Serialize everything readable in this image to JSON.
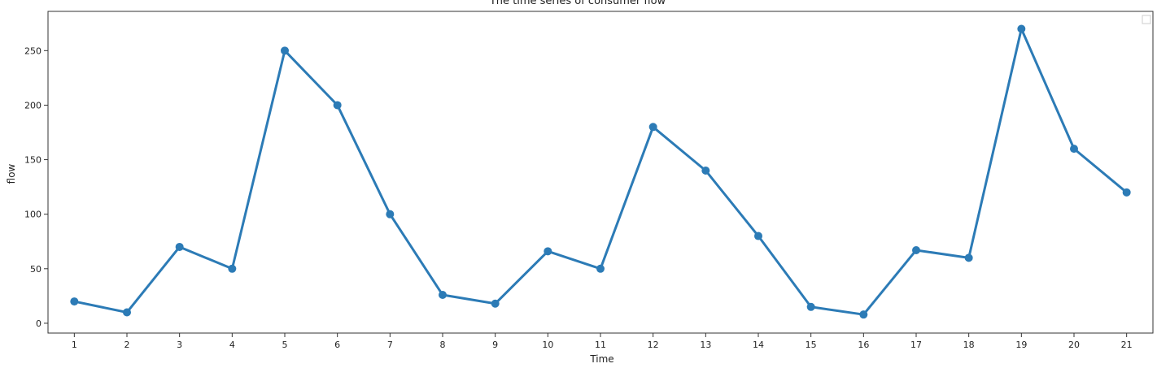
{
  "chart_data": {
    "type": "line",
    "title": "The time series of consumer flow",
    "xlabel": "Time",
    "ylabel": "flow",
    "x": [
      1,
      2,
      3,
      4,
      5,
      6,
      7,
      8,
      9,
      10,
      11,
      12,
      13,
      14,
      15,
      16,
      17,
      18,
      19,
      20,
      21
    ],
    "series": [
      {
        "values": [
          20,
          10,
          70,
          50,
          250,
          200,
          100,
          26,
          18,
          66,
          50,
          180,
          140,
          80,
          15,
          8,
          67,
          60,
          270,
          160,
          120
        ]
      }
    ],
    "xlim": [
      0.5,
      21.5
    ],
    "ylim": [
      -9,
      286
    ],
    "yticks": [
      0,
      50,
      100,
      150,
      200,
      250
    ],
    "grid": false,
    "legend": "top-right",
    "colors": {
      "series": "#2c7bb6",
      "axes": "#333333"
    }
  }
}
